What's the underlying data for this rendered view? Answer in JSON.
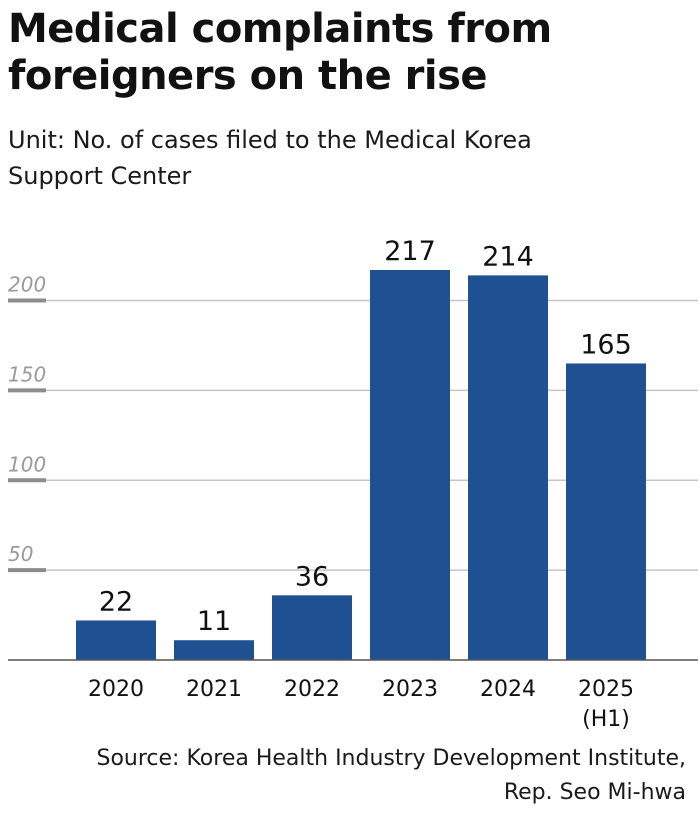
{
  "header": {
    "title_line1": "Medical complaints from",
    "title_line2": "foreigners on the rise",
    "unit_line1": "Unit: No. of cases filed to the Medical Korea",
    "unit_line2": "Support Center"
  },
  "footer": {
    "source_line1": "Source: Korea Health Industry Development Institute,",
    "source_line2": "Rep. Seo Mi-hwa"
  },
  "chart_data": {
    "type": "bar",
    "title": "Medical complaints from foreigners on the rise",
    "ylabel": "No. of cases filed to the Medical Korea Support Center",
    "xlabel": "",
    "categories": [
      [
        "2020"
      ],
      [
        "2021"
      ],
      [
        "2022"
      ],
      [
        "2023"
      ],
      [
        "2024"
      ],
      [
        "2025",
        "(H1)"
      ]
    ],
    "values": [
      22,
      11,
      36,
      217,
      214,
      165
    ],
    "ylim": [
      0,
      217
    ],
    "yticks": [
      50,
      100,
      150,
      200
    ],
    "grid": true,
    "colors": {
      "bar": "#1f5192",
      "grid": "#c4c4c4",
      "tickmark": "#8c8c8c",
      "axis": "#555555"
    }
  }
}
